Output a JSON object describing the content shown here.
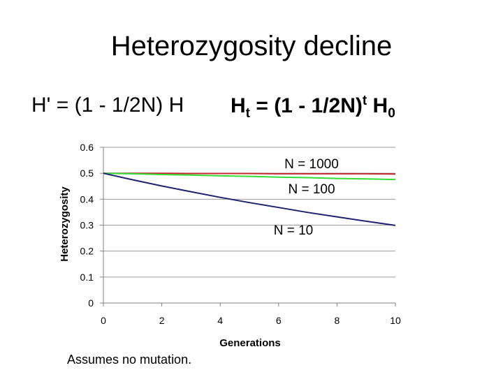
{
  "slide": {
    "title": "Heterozygosity decline",
    "formula_left": "H' = (1 - 1/2N) H",
    "formula_right": {
      "h_t": "H",
      "t_sub": "t",
      "middle": " = (1 - 1/2N)",
      "exp": "t",
      "h_0": " H",
      "zero_sub": "0"
    },
    "note": "Assumes no mutation."
  },
  "chart_data": {
    "type": "line",
    "xlabel": "Generations",
    "ylabel": "Heterozygosity",
    "xlim": [
      0,
      10
    ],
    "ylim": [
      0,
      0.6
    ],
    "xticks": [
      0,
      2,
      4,
      6,
      8,
      10
    ],
    "yticks": [
      0,
      0.1,
      0.2,
      0.3,
      0.4,
      0.5,
      0.6
    ],
    "grid": "horizontal",
    "series": [
      {
        "name": "N = 1000",
        "color": "#c0282d",
        "x": [
          0,
          1,
          2,
          3,
          4,
          5,
          6,
          7,
          8,
          9,
          10
        ],
        "values": [
          0.5,
          0.5,
          0.5,
          0.499,
          0.499,
          0.499,
          0.498,
          0.498,
          0.498,
          0.498,
          0.497
        ]
      },
      {
        "name": "N = 100",
        "color": "#33dd33",
        "x": [
          0,
          1,
          2,
          3,
          4,
          5,
          6,
          7,
          8,
          9,
          10
        ],
        "values": [
          0.5,
          0.498,
          0.495,
          0.493,
          0.49,
          0.488,
          0.485,
          0.483,
          0.48,
          0.478,
          0.476
        ]
      },
      {
        "name": "N = 10",
        "color": "#1f2270",
        "x": [
          0,
          1,
          2,
          3,
          4,
          5,
          6,
          7,
          8,
          9,
          10
        ],
        "values": [
          0.5,
          0.475,
          0.451,
          0.429,
          0.407,
          0.387,
          0.368,
          0.349,
          0.332,
          0.315,
          0.299
        ]
      }
    ]
  }
}
